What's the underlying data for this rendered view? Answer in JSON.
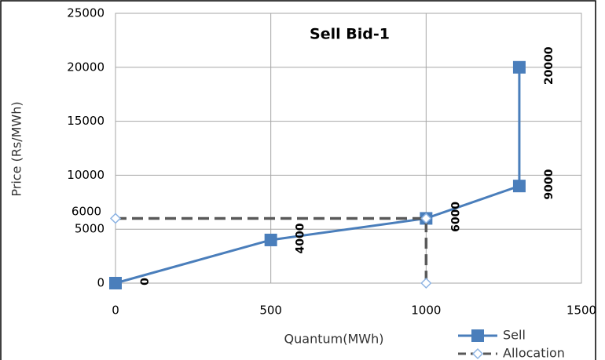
{
  "chart_data": {
    "type": "line",
    "title": "Sell Bid-1",
    "x_label": "Quantum(MWh)",
    "y_label": "Price (Rs/MWh)",
    "xlim": [
      0,
      1500
    ],
    "xticks": [
      0,
      500,
      1000,
      1500
    ],
    "ylim": [
      0,
      25000
    ],
    "yticks": [
      0,
      5000,
      10000,
      15000,
      20000,
      25000
    ],
    "grid": true,
    "legend": "bottom-right",
    "annotations": [
      "6000"
    ],
    "series": [
      {
        "name": "Sell",
        "color": "#4a7ebb",
        "marker": "square",
        "dashed": false,
        "data_labels": true,
        "x": [
          0,
          500,
          1000,
          1300,
          1300
        ],
        "values": [
          0,
          4000,
          6000,
          9000,
          20000
        ]
      },
      {
        "name": "Allocation",
        "color": "#595959",
        "marker_color": "#8eb4e3",
        "marker": "diamond",
        "dashed": true,
        "data_labels": false,
        "x": [
          0,
          1000,
          1000
        ],
        "values": [
          6000,
          6000,
          0
        ]
      }
    ]
  }
}
